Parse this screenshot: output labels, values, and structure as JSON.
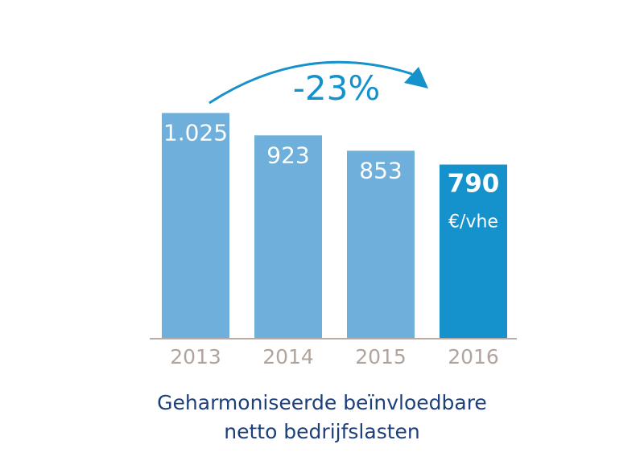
{
  "chart_data": {
    "type": "bar",
    "categories": [
      "2013",
      "2014",
      "2015",
      "2016"
    ],
    "values": [
      1025,
      923,
      853,
      790
    ],
    "value_labels": [
      "1.025",
      "923",
      "853",
      "790"
    ],
    "highlight_unit": "€/vhe",
    "change_label": "-23%",
    "ylim": [
      0,
      1100
    ],
    "grid": false,
    "colors": {
      "bar": "#6eafdc",
      "bar_highlight": "#1592cc",
      "arrow": "#1592cc",
      "change_text": "#1592cc",
      "baseline": "#b8aca4",
      "tick_text": "#b0a49c",
      "label_text": "#ffffff"
    },
    "caption_lines": [
      "Geharmoniseerde beïnvloedbare",
      "netto bedrijfslasten"
    ]
  }
}
